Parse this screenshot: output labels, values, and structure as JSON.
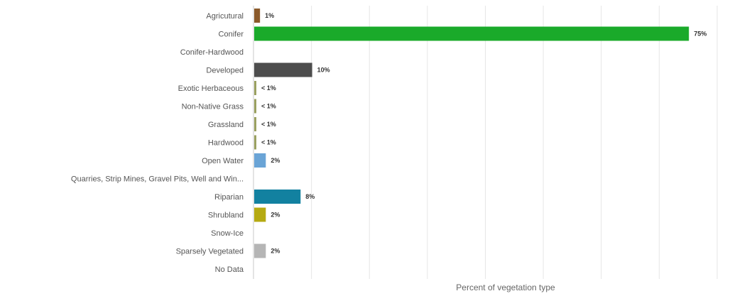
{
  "chart_data": {
    "type": "bar",
    "orientation": "horizontal",
    "categories": [
      "Agricutural",
      "Conifer",
      "Conifer-Hardwood",
      "Developed",
      "Exotic Herbaceous",
      "Non-Native Grass",
      "Grassland",
      "Hardwood",
      "Open Water",
      "Quarries, Strip Mines, Gravel Pits, Well and Win...",
      "Riparian",
      "Shrubland",
      "Snow-Ice",
      "Sparsely Vegetated",
      "No Data"
    ],
    "values": [
      1,
      75,
      0,
      10,
      0.3,
      0.3,
      0.3,
      0.3,
      2,
      0,
      8,
      2,
      0,
      2,
      0
    ],
    "data_labels": [
      "1%",
      "75%",
      "",
      "10%",
      "< 1%",
      "< 1%",
      "< 1%",
      "< 1%",
      "2%",
      "",
      "8%",
      "2%",
      "",
      "2%",
      ""
    ],
    "colors": [
      "#8b5a2b",
      "#1aaa2a",
      "#1aaa2a",
      "#4d4d4d",
      "#9aa060",
      "#9aa060",
      "#9aa060",
      "#9aa060",
      "#6aa4d6",
      "#999999",
      "#1281a0",
      "#b5aa12",
      "#dddddd",
      "#b5b5b5",
      "#cccccc"
    ],
    "title": "",
    "xlabel": "Percent of vegetation type",
    "ylabel": "",
    "xlim": [
      0,
      80
    ],
    "grid": true,
    "legend": "none"
  }
}
